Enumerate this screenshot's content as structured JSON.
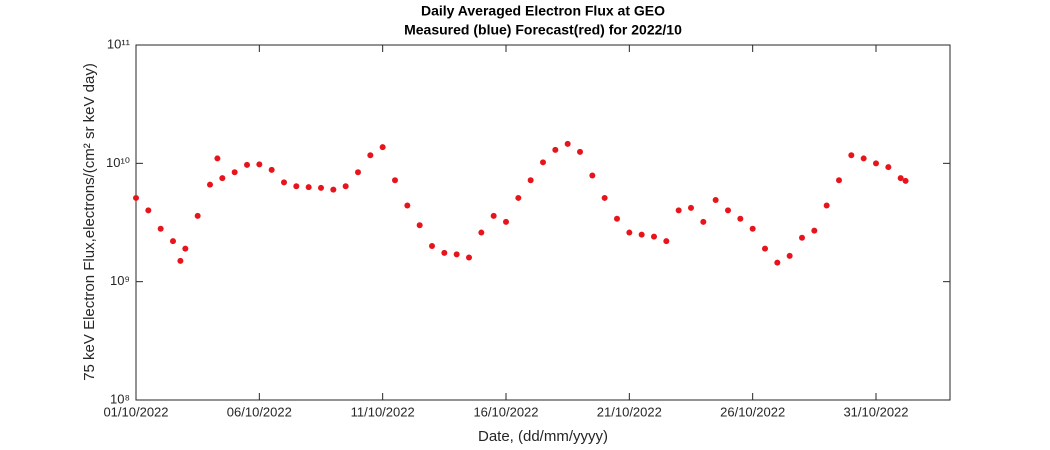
{
  "chart_data": {
    "type": "scatter",
    "title": "Daily Averaged Electron Flux at GEO",
    "subtitle": "Measured (blue) Forecast(red) for 2022/10",
    "x_label": "Date, (dd/mm/yyyy)",
    "y_label": "75 keV Electron Flux,electrons/(cm² sr keV day)",
    "color": "#e8141b",
    "log_y": true,
    "grid": false,
    "xlim": [
      1,
      34
    ],
    "xticks": [
      {
        "value": 1,
        "label": "01/10/2022"
      },
      {
        "value": 6,
        "label": "06/10/2022"
      },
      {
        "value": 11,
        "label": "11/10/2022"
      },
      {
        "value": 16,
        "label": "16/10/2022"
      },
      {
        "value": 21,
        "label": "21/10/2022"
      },
      {
        "value": 26,
        "label": "26/10/2022"
      },
      {
        "value": 31,
        "label": "31/10/2022"
      }
    ],
    "ylim": [
      100000000,
      100000000000
    ],
    "yticks": [
      {
        "value": 100000000,
        "label": "10⁸"
      },
      {
        "value": 1000000000,
        "label": "10⁹"
      },
      {
        "value": 10000000000,
        "label": "10¹⁰"
      },
      {
        "value": 100000000000,
        "label": "10¹¹"
      }
    ],
    "x": [
      1,
      1.5,
      2,
      2.5,
      2.8,
      3,
      3.5,
      4,
      4.3,
      4.5,
      5,
      5.5,
      6,
      6.5,
      7,
      7.5,
      8,
      8.5,
      9,
      9.5,
      10,
      10.5,
      11,
      11.5,
      12,
      12.5,
      13,
      13.5,
      14,
      14.5,
      15,
      15.5,
      16,
      16.5,
      17,
      17.5,
      18,
      18.5,
      19,
      19.5,
      20,
      20.5,
      21,
      21.5,
      22,
      22.5,
      23,
      23.5,
      24,
      24.5,
      25,
      25.5,
      26,
      26.5,
      27,
      27.5,
      28,
      28.5,
      29,
      29.5,
      30,
      30.5,
      31,
      31.5,
      32,
      32.2
    ],
    "values": [
      5100000000,
      4000000000,
      2800000000,
      2200000000,
      1500000000,
      1900000000,
      3600000000,
      6600000000,
      11000000000,
      7500000000,
      8400000000,
      9700000000,
      9800000000,
      8800000000,
      6900000000,
      6400000000,
      6300000000,
      6200000000,
      6000000000,
      6400000000,
      8400000000,
      11700000000,
      13700000000,
      7200000000,
      4400000000,
      3000000000,
      2000000000,
      1750000000,
      1700000000,
      1600000000,
      2600000000,
      3600000000,
      3200000000,
      5100000000,
      7200000000,
      10200000000,
      13000000000,
      14600000000,
      12500000000,
      7900000000,
      5100000000,
      3400000000,
      2600000000,
      2500000000,
      2400000000,
      2200000000,
      4000000000,
      4200000000,
      3200000000,
      4900000000,
      4000000000,
      3400000000,
      2800000000,
      1900000000,
      1450000000,
      1650000000,
      2350000000,
      2700000000,
      4400000000,
      7200000000,
      11700000000,
      11000000000,
      10000000000,
      9300000000,
      7500000000,
      7100000000
    ]
  }
}
